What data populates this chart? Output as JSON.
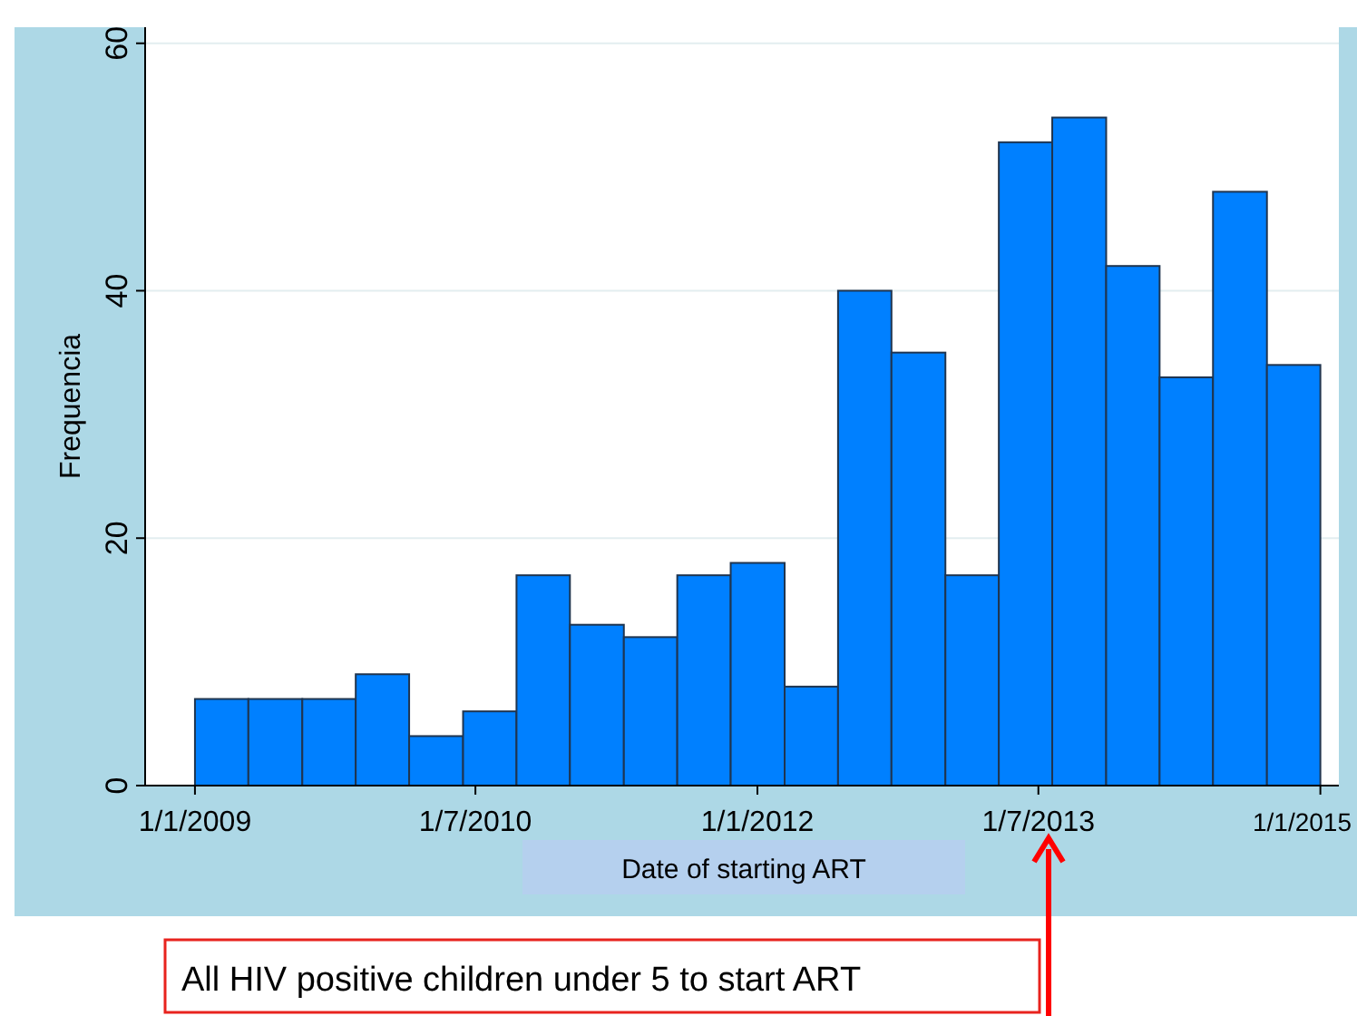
{
  "chart_data": {
    "type": "histogram",
    "xlabel": "Date of starting ART",
    "ylabel": "Frequencia",
    "bins": [
      "2009-01-01",
      "2009-04-15",
      "2009-07-29",
      "2009-11-10",
      "2010-02-22",
      "2010-06-07",
      "2010-09-19",
      "2011-01-01",
      "2011-04-16",
      "2011-07-29",
      "2011-11-10",
      "2012-02-23",
      "2012-06-06",
      "2012-09-18",
      "2013-01-01",
      "2013-04-15",
      "2013-07-28",
      "2013-11-10",
      "2014-02-22",
      "2014-06-06",
      "2014-09-19",
      "2015-01-01"
    ],
    "values": [
      7,
      7,
      7,
      9,
      4,
      6,
      17,
      13,
      12,
      17,
      18,
      8,
      40,
      35,
      17,
      52,
      54,
      42,
      33,
      48,
      34
    ],
    "color": "#0080ff",
    "xlim": [
      "2008-09-26",
      "2015-02-06"
    ],
    "ylim": [
      0,
      61.3
    ],
    "xticks": [
      {
        "value": "2009-01-01",
        "label": "1/1/2009"
      },
      {
        "value": "2010-07-01",
        "label": "1/7/2010"
      },
      {
        "value": "2012-01-01",
        "label": "1/1/2012"
      },
      {
        "value": "2013-07-01",
        "label": "1/7/2013"
      },
      {
        "value": "2015-01-01",
        "label": "1/1/2015"
      }
    ],
    "yticks": [
      0,
      20,
      40,
      60
    ],
    "grid": "y",
    "annotations": [
      "All HIV positive children under 5 to start ART"
    ]
  }
}
